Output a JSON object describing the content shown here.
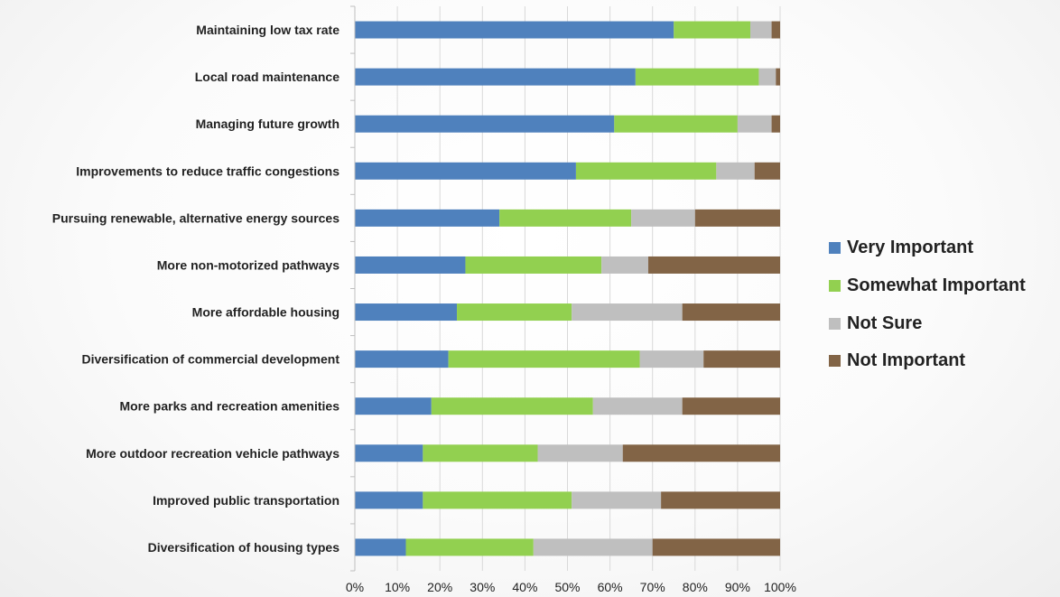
{
  "chart_data": {
    "type": "bar",
    "orientation": "horizontal",
    "stacked": true,
    "percent_stacked": true,
    "categories": [
      "Maintaining low tax rate",
      "Local road maintenance",
      "Managing future growth",
      "Improvements to reduce traffic congestions",
      "Pursuing renewable, alternative energy sources",
      "More non-motorized pathways",
      "More affordable housing",
      "Diversification of commercial development",
      "More parks and recreation amenities",
      "More outdoor recreation vehicle pathways",
      "Improved public transportation",
      "Diversification of housing types"
    ],
    "series": [
      {
        "name": "Very Important",
        "color": "#4f81bd",
        "values": [
          75,
          66,
          61,
          52,
          34,
          26,
          24,
          22,
          18,
          16,
          16,
          12
        ]
      },
      {
        "name": "Somewhat Important",
        "color": "#92d050",
        "values": [
          18,
          29,
          29,
          33,
          31,
          32,
          27,
          45,
          38,
          27,
          35,
          30
        ]
      },
      {
        "name": "Not Sure",
        "color": "#bfbfbf",
        "values": [
          5,
          4,
          8,
          9,
          15,
          11,
          26,
          15,
          21,
          20,
          21,
          28
        ]
      },
      {
        "name": "Not Important",
        "color": "#826446",
        "values": [
          2,
          1,
          2,
          6,
          20,
          31,
          23,
          18,
          23,
          37,
          28,
          30
        ]
      }
    ],
    "x_ticks": [
      "0%",
      "10%",
      "20%",
      "30%",
      "40%",
      "50%",
      "60%",
      "70%",
      "80%",
      "90%",
      "100%"
    ],
    "xlim": [
      0,
      100
    ],
    "grid": true,
    "legend_position": "right",
    "title": "",
    "xlabel": "",
    "ylabel": ""
  }
}
